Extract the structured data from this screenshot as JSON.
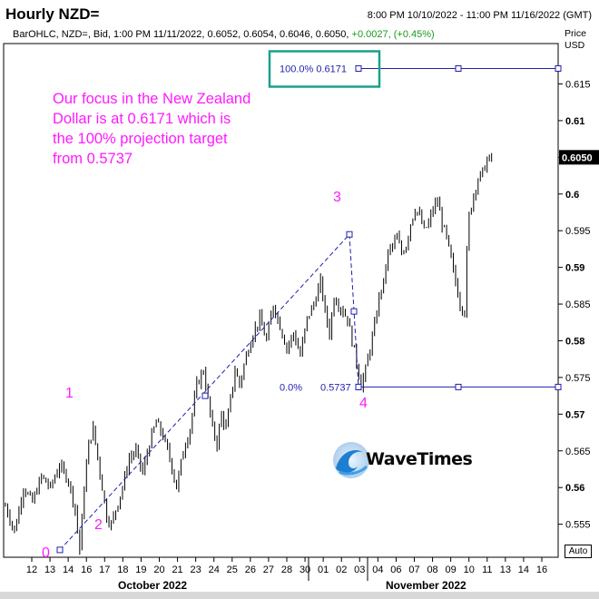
{
  "header": {
    "title": "Hourly NZD=",
    "range": "8:00 PM 10/10/2022 - 11:00 PM 11/16/2022 (GMT)",
    "info_main": "BarOHLC, NZD=, Bid, 1:00 PM 11/11/2022, 0.6052, 0.6054, 0.6046, 0.6050,",
    "info_change": "+0.0027, (+0.45%)",
    "price_label": "Price",
    "currency_label": "USD"
  },
  "annotation": {
    "note": "Our focus in the New Zealand Dollar is at 0.6171 which is the 100% projection target from 0.5737",
    "fib_100_label": "100.0%  0.6171",
    "fib_0_pct": "0.0%",
    "fib_0_value": "0.5737",
    "waves": [
      "0",
      "1",
      "2",
      "3",
      "4"
    ]
  },
  "logo": {
    "text": "WaveTimes",
    "icon": "wave-icon"
  },
  "controls": {
    "auto_label": "Auto"
  },
  "chart_data": {
    "type": "ohlc",
    "series_name": "NZD=",
    "last_price": 0.605,
    "last_price_label": "0.6050",
    "ylim": [
      0.5505,
      0.6205
    ],
    "y_ticks": [
      0.555,
      0.56,
      0.565,
      0.57,
      0.575,
      0.58,
      0.585,
      0.59,
      0.595,
      0.6,
      0.605,
      0.61,
      0.615
    ],
    "y_tick_labels": [
      "0.555",
      "0.56",
      "0.565",
      "0.57",
      "0.575",
      "0.58",
      "0.585",
      "0.59",
      "0.595",
      "0.6",
      "0.605",
      "0.61",
      "0.615"
    ],
    "x_tick_labels": [
      "12",
      "13",
      "14",
      "16",
      "17",
      "18",
      "19",
      "20",
      "21",
      "23",
      "24",
      "25",
      "26",
      "27",
      "28",
      "30",
      "01",
      "02",
      "03",
      "04",
      "06",
      "07",
      "08",
      "09",
      "10",
      "11",
      "13",
      "14",
      "16"
    ],
    "month_labels": [
      "October 2022",
      "November 2022"
    ],
    "close_path": [
      [
        0,
        0.5575
      ],
      [
        4,
        0.554
      ],
      [
        8,
        0.56
      ],
      [
        12,
        0.558
      ],
      [
        16,
        0.5615
      ],
      [
        20,
        0.56
      ],
      [
        24,
        0.563
      ],
      [
        28,
        0.561
      ],
      [
        31,
        0.557
      ],
      [
        33,
        0.5515
      ],
      [
        35,
        0.56
      ],
      [
        37,
        0.566
      ],
      [
        39,
        0.568
      ],
      [
        41,
        0.564
      ],
      [
        43,
        0.56
      ],
      [
        45,
        0.556
      ],
      [
        47,
        0.555
      ],
      [
        49,
        0.557
      ],
      [
        52,
        0.56
      ],
      [
        55,
        0.564
      ],
      [
        58,
        0.565
      ],
      [
        61,
        0.562
      ],
      [
        64,
        0.566
      ],
      [
        67,
        0.569
      ],
      [
        70,
        0.567
      ],
      [
        73,
        0.564
      ],
      [
        76,
        0.56
      ],
      [
        79,
        0.565
      ],
      [
        82,
        0.568
      ],
      [
        85,
        0.574
      ],
      [
        88,
        0.576
      ],
      [
        90,
        0.572
      ],
      [
        92,
        0.568
      ],
      [
        94,
        0.566
      ],
      [
        96,
        0.57
      ],
      [
        98,
        0.568
      ],
      [
        100,
        0.572
      ],
      [
        102,
        0.576
      ],
      [
        104,
        0.574
      ],
      [
        107,
        0.578
      ],
      [
        110,
        0.581
      ],
      [
        113,
        0.583
      ],
      [
        116,
        0.58
      ],
      [
        119,
        0.585
      ],
      [
        122,
        0.582
      ],
      [
        125,
        0.579
      ],
      [
        128,
        0.581
      ],
      [
        131,
        0.578
      ],
      [
        134,
        0.583
      ],
      [
        137,
        0.585
      ],
      [
        140,
        0.588
      ],
      [
        142,
        0.584
      ],
      [
        144,
        0.581
      ],
      [
        146,
        0.586
      ],
      [
        148,
        0.585
      ],
      [
        150,
        0.584
      ],
      [
        152,
        0.583
      ],
      [
        154,
        0.58
      ],
      [
        156,
        0.577
      ],
      [
        158,
        0.574
      ],
      [
        160,
        0.576
      ],
      [
        162,
        0.579
      ],
      [
        164,
        0.582
      ],
      [
        166,
        0.586
      ],
      [
        168,
        0.588
      ],
      [
        170,
        0.592
      ],
      [
        172,
        0.593
      ],
      [
        174,
        0.594
      ],
      [
        176,
        0.592
      ],
      [
        178,
        0.593
      ],
      [
        180,
        0.596
      ],
      [
        182,
        0.598
      ],
      [
        184,
        0.597
      ],
      [
        186,
        0.595
      ],
      [
        188,
        0.596
      ],
      [
        190,
        0.598
      ],
      [
        192,
        0.599
      ],
      [
        194,
        0.596
      ],
      [
        196,
        0.594
      ],
      [
        198,
        0.591
      ],
      [
        200,
        0.588
      ],
      [
        202,
        0.585
      ],
      [
        204,
        0.584
      ],
      [
        205,
        0.592
      ],
      [
        206,
        0.597
      ],
      [
        208,
        0.6
      ],
      [
        210,
        0.602
      ],
      [
        212,
        0.603
      ],
      [
        214,
        0.6045
      ],
      [
        216,
        0.605
      ]
    ],
    "wave_lines": [
      {
        "x": 20,
        "y": 0.5515
      },
      {
        "x": 85,
        "y": 0.5725
      },
      {
        "x": 150,
        "y": 0.5945
      },
      {
        "x": 150,
        "y": 0.584
      },
      {
        "x": 152,
        "y": 0.5737
      }
    ],
    "fib_levels": [
      {
        "ratio": "100.0%",
        "value": 0.6171
      },
      {
        "ratio": "0.0%",
        "value": 0.5737
      }
    ]
  }
}
